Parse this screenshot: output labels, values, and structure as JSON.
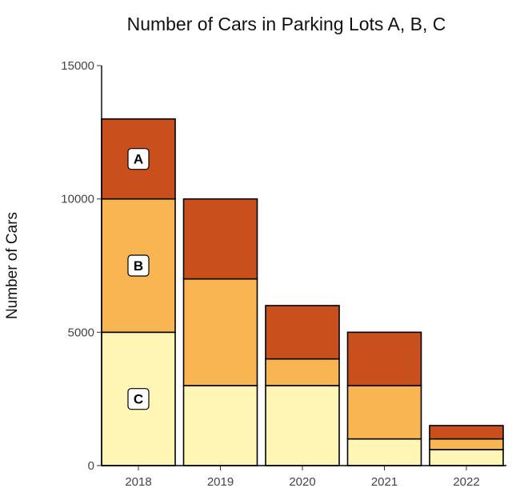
{
  "chart_data": {
    "type": "bar",
    "stacked": true,
    "title": "Number of Cars in Parking Lots A, B, C",
    "xlabel": "",
    "ylabel": "Number of Cars",
    "ylim": [
      0,
      15000
    ],
    "yticks": [
      0,
      5000,
      10000,
      15000
    ],
    "categories": [
      "2018",
      "2019",
      "2020",
      "2021",
      "2022"
    ],
    "series": [
      {
        "name": "C",
        "color": "#FFF5B5",
        "values": [
          5000,
          3000,
          3000,
          1000,
          600
        ]
      },
      {
        "name": "B",
        "color": "#F8B552",
        "values": [
          5000,
          4000,
          1000,
          2000,
          400
        ]
      },
      {
        "name": "A",
        "color": "#C9501D",
        "values": [
          3000,
          3000,
          2000,
          2000,
          500
        ]
      }
    ],
    "segment_labels": {
      "category": "2018",
      "labels": [
        "C",
        "B",
        "A"
      ]
    },
    "grid": false,
    "legend": "none"
  }
}
